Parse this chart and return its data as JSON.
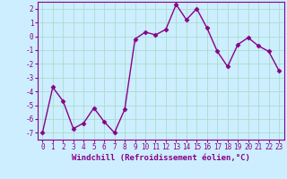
{
  "x": [
    0,
    1,
    2,
    3,
    4,
    5,
    6,
    7,
    8,
    9,
    10,
    11,
    12,
    13,
    14,
    15,
    16,
    17,
    18,
    19,
    20,
    21,
    22,
    23
  ],
  "y": [
    -7.0,
    -3.7,
    -4.7,
    -6.7,
    -6.3,
    -5.2,
    -6.2,
    -7.0,
    -5.3,
    -0.2,
    0.3,
    0.1,
    0.5,
    2.3,
    1.2,
    2.0,
    0.6,
    -1.1,
    -2.2,
    -0.6,
    -0.1,
    -0.7,
    -1.1,
    -2.5
  ],
  "line_color": "#880088",
  "marker": "D",
  "bg_color": "#cceeff",
  "grid_color": "#aaddcc",
  "xlabel": "Windchill (Refroidissement éolien,°C)",
  "ylim": [
    -7.5,
    2.5
  ],
  "xlim": [
    -0.5,
    23.5
  ],
  "yticks": [
    -7,
    -6,
    -5,
    -4,
    -3,
    -2,
    -1,
    0,
    1,
    2
  ],
  "xticks": [
    0,
    1,
    2,
    3,
    4,
    5,
    6,
    7,
    8,
    9,
    10,
    11,
    12,
    13,
    14,
    15,
    16,
    17,
    18,
    19,
    20,
    21,
    22,
    23
  ],
  "tick_color": "#880088",
  "xlabel_color": "#880088",
  "tick_fontsize": 5.5,
  "xlabel_fontsize": 6.5,
  "line_width": 1.0,
  "marker_size": 2.5,
  "spine_color": "#880088"
}
